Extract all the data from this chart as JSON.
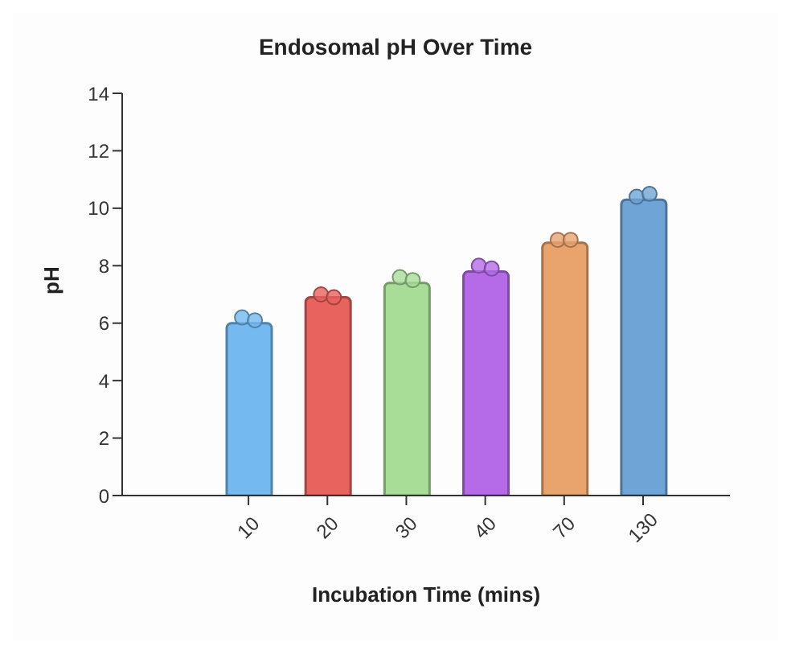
{
  "chart_data": {
    "type": "bar",
    "title": "Endosomal pH Over Time",
    "xlabel": "Incubation Time (mins)",
    "ylabel": "pH",
    "categories": [
      "10",
      "20",
      "30",
      "40",
      "70",
      "130"
    ],
    "values": [
      6.0,
      6.9,
      7.4,
      7.8,
      8.8,
      10.3
    ],
    "colors": [
      "#74b9ef",
      "#e8625e",
      "#a8dd98",
      "#b56be8",
      "#e9a46e",
      "#6fa5d6"
    ],
    "series": [
      {
        "type": "scatter",
        "x": [
          "10",
          "20",
          "30",
          "40",
          "70",
          "130"
        ],
        "values": [
          6.2,
          7.0,
          7.6,
          8.0,
          8.9,
          10.4
        ],
        "colors": [
          "#74b9ef",
          "#e8625e",
          "#a8dd98",
          "#b56be8",
          "#e9a46e",
          "#6fa5d6"
        ]
      },
      {
        "type": "scatter",
        "x": [
          "10",
          "20",
          "30",
          "40",
          "70",
          "130"
        ],
        "values": [
          6.1,
          6.9,
          7.5,
          7.9,
          8.9,
          10.5
        ],
        "colors": [
          "#74b9ef",
          "#e8625e",
          "#a8dd98",
          "#b56be8",
          "#e9a46e",
          "#6fa5d6"
        ]
      }
    ],
    "ylim": [
      0,
      14
    ],
    "yticks": [
      0,
      2,
      4,
      6,
      8,
      10,
      12,
      14
    ],
    "grid": false,
    "legend": false,
    "marker": "circle"
  }
}
